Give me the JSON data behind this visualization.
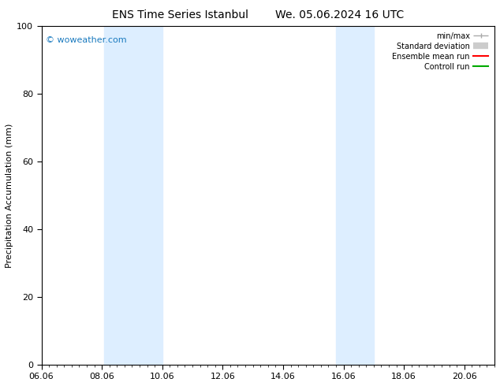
{
  "title_left": "ENS Time Series Istanbul",
  "title_right": "We. 05.06.2024 16 UTC",
  "ylabel": "Precipitation Accumulation (mm)",
  "ylim": [
    0,
    100
  ],
  "x_start": "2024-06-06 00:00",
  "x_tick_labels": [
    "06.06",
    "08.06",
    "10.06",
    "12.06",
    "14.06",
    "16.06",
    "18.06",
    "20.06"
  ],
  "x_tick_hours": [
    0,
    48,
    96,
    144,
    192,
    240,
    288,
    336
  ],
  "shaded_bands": [
    {
      "xmin_h": 50,
      "xmax_h": 96,
      "color": "#ddeeff"
    },
    {
      "xmin_h": 234,
      "xmax_h": 264,
      "color": "#ddeeff"
    }
  ],
  "watermark": "© woweather.com",
  "watermark_color": "#1a7abf",
  "legend_labels": [
    "min/max",
    "Standard deviation",
    "Ensemble mean run",
    "Controll run"
  ],
  "legend_colors": [
    "#aaaaaa",
    "#cccccc",
    "#ff0000",
    "#00aa00"
  ],
  "legend_lws": [
    1.0,
    6.0,
    1.5,
    1.5
  ],
  "bg_color": "#ffffff",
  "plot_bg_color": "#ffffff",
  "title_fontsize": 10,
  "axis_fontsize": 8,
  "tick_fontsize": 8
}
